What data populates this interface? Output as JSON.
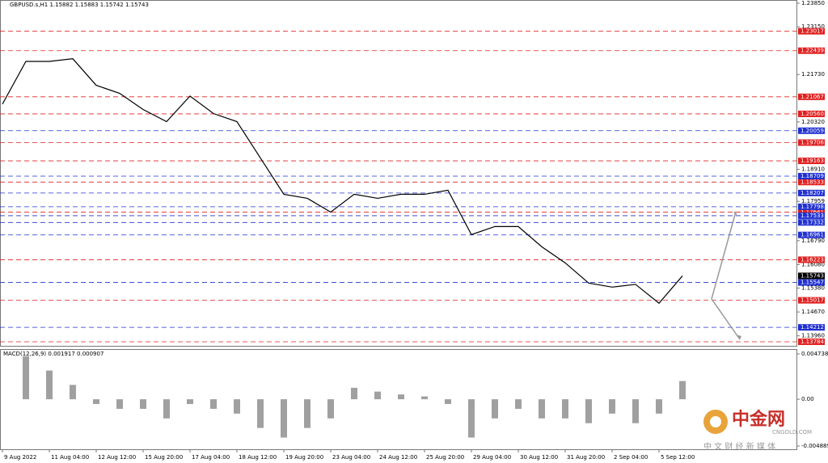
{
  "chart_data": [
    {
      "type": "line",
      "title": "GBPUSD.s,H1  1.15882 1.15883 1.15742 1.15743",
      "categories": [
        "9 Aug 2022",
        null,
        "11 Aug 04:00",
        null,
        "12 Aug 12:00",
        null,
        "15 Aug 20:00",
        null,
        "17 Aug 04:00",
        null,
        "18 Aug 12:00",
        null,
        "19 Aug 20:00",
        null,
        "23 Aug 04:00",
        null,
        "24 Aug 12:00",
        null,
        "25 Aug 20:00",
        null,
        "29 Aug 04:00",
        null,
        "30 Aug 12:00",
        null,
        "31 Aug 20:00",
        null,
        "2 Sep 04:00",
        null,
        "5 Sep 12:00",
        null
      ],
      "series": [
        {
          "color": "#000000",
          "values": [
            1.2085,
            1.2212,
            1.2212,
            1.222,
            1.2141,
            1.2117,
            1.2069,
            1.2033,
            1.2109,
            1.2057,
            1.2033,
            1.1925,
            1.1817,
            1.1805,
            1.1764,
            1.1817,
            1.1805,
            1.1817,
            1.1817,
            1.1829,
            1.1697,
            1.1721,
            1.1721,
            1.1661,
            1.1613,
            1.1553,
            1.1541,
            1.1549,
            1.1493,
            1.15743
          ]
        }
      ],
      "ylim": [
        1.13663,
        1.23922
      ],
      "yticks": [
        {
          "value": 1.2385,
          "label": "1.23850"
        },
        {
          "value": 1.2315,
          "label": "1.23150"
        },
        {
          "value": 1.2173,
          "label": "1.21730"
        },
        {
          "value": 1.2032,
          "label": "1.20320"
        },
        {
          "value": 1.1891,
          "label": "1.18910"
        },
        1.17959,
        {
          "value": 1.1679,
          "label": "1.16790"
        },
        {
          "value": 1.1608,
          "label": "1.16080"
        },
        {
          "value": 1.1538,
          "label": "1.15380"
        },
        {
          "value": 1.1467,
          "label": "1.14670"
        },
        {
          "value": 1.1396,
          "label": "1.13960"
        }
      ],
      "levels": [
        {
          "color": "#e02020",
          "values": [
            1.23017,
            1.22439,
            1.21067,
            {
              "value": 1.2056,
              "label": "1.20560"
            },
            1.19706,
            1.19163,
            1.18533,
            1.17641,
            1.16223,
            1.15017,
            1.13784
          ]
        },
        {
          "color": "#2030d0",
          "values": [
            1.20059,
            1.18709,
            1.18207,
            1.17798,
            1.17533,
            1.17332,
            1.16961,
            1.15547,
            1.14212
          ]
        }
      ]
    },
    {
      "type": "bar",
      "title": "MACD(12,26,9) 0.001917 0.000907",
      "color": "#a0a0a0",
      "values": [
        0,
        0.0045,
        0.003,
        0.0015,
        -0.0005,
        -0.001,
        -0.001,
        -0.002,
        -0.0005,
        -0.001,
        -0.0015,
        -0.003,
        -0.004,
        -0.003,
        -0.002,
        0.0012,
        0.0008,
        0.0005,
        0.0003,
        -0.0005,
        -0.004,
        -0.002,
        -0.001,
        -0.002,
        -0.002,
        -0.0025,
        -0.0015,
        -0.0025,
        -0.0015,
        0.0019
      ],
      "ylim": [
        -0.005224,
        0.005157
      ],
      "yticks": [
        0.004738,
        {
          "value": 0,
          "label": "0.00"
        },
        -0.004889
      ]
    }
  ],
  "watermark": {
    "name": "中金网",
    "site": "CNGOLD.COM",
    "slogan": "中 文 财 经 新 媒 体"
  }
}
